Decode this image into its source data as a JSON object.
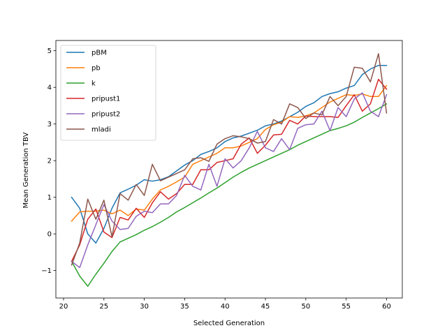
{
  "chart_data": {
    "type": "line",
    "xlabel": "Selected Generation",
    "ylabel": "Mean Generation TBV",
    "xlim": [
      19.05,
      61.95
    ],
    "ylim": [
      -1.75,
      5.28
    ],
    "xticks": [
      20,
      25,
      30,
      35,
      40,
      45,
      50,
      55,
      60
    ],
    "yticks": [
      -1,
      0,
      1,
      2,
      3,
      4,
      5
    ],
    "grid": false,
    "legend_position": "top-left",
    "x": [
      21,
      22,
      23,
      24,
      25,
      26,
      27,
      28,
      29,
      30,
      31,
      32,
      33,
      34,
      35,
      36,
      37,
      38,
      39,
      40,
      41,
      42,
      43,
      44,
      45,
      46,
      47,
      48,
      49,
      50,
      51,
      52,
      53,
      54,
      55,
      56,
      57,
      58,
      59,
      60
    ],
    "series": [
      {
        "name": "pBM",
        "color": "#1f77b4",
        "values": [
          1.0,
          0.7,
          0.0,
          -0.25,
          0.15,
          0.7,
          1.12,
          1.22,
          1.33,
          1.48,
          1.44,
          1.48,
          1.56,
          1.72,
          1.88,
          2.0,
          2.17,
          2.25,
          2.35,
          2.52,
          2.62,
          2.67,
          2.75,
          2.83,
          2.95,
          3.0,
          3.08,
          3.2,
          3.32,
          3.48,
          3.58,
          3.75,
          3.83,
          3.88,
          3.98,
          4.05,
          4.35,
          4.5,
          4.6,
          4.6
        ]
      },
      {
        "name": "pb",
        "color": "#ff7f0e",
        "values": [
          0.35,
          0.6,
          0.62,
          0.62,
          0.65,
          0.55,
          0.65,
          0.5,
          0.68,
          0.65,
          0.95,
          1.2,
          1.3,
          1.42,
          1.55,
          1.9,
          2.0,
          2.1,
          2.2,
          2.35,
          2.35,
          2.4,
          2.5,
          2.6,
          2.85,
          2.98,
          3.05,
          3.2,
          3.18,
          3.22,
          3.3,
          3.45,
          3.6,
          3.7,
          3.8,
          3.78,
          3.82,
          3.75,
          3.75,
          4.05
        ]
      },
      {
        "name": "k",
        "color": "#2ca02c",
        "values": [
          -0.75,
          -1.15,
          -1.43,
          -1.1,
          -0.8,
          -0.48,
          -0.22,
          -0.12,
          -0.02,
          0.1,
          0.2,
          0.32,
          0.45,
          0.6,
          0.72,
          0.85,
          0.98,
          1.12,
          1.25,
          1.4,
          1.55,
          1.68,
          1.8,
          1.9,
          2.0,
          2.1,
          2.2,
          2.3,
          2.42,
          2.52,
          2.62,
          2.72,
          2.82,
          2.88,
          2.95,
          3.05,
          3.18,
          3.3,
          3.42,
          3.55
        ]
      },
      {
        "name": "pripust1",
        "color": "#d62728",
        "values": [
          -0.75,
          -0.3,
          0.4,
          0.68,
          0.05,
          -0.1,
          0.45,
          0.38,
          0.7,
          0.45,
          0.85,
          1.15,
          0.95,
          1.1,
          1.35,
          1.35,
          1.75,
          1.75,
          1.95,
          2.0,
          2.05,
          2.45,
          2.62,
          2.2,
          2.42,
          2.7,
          2.72,
          3.1,
          3.0,
          3.22,
          3.2,
          3.2,
          3.2,
          3.18,
          3.5,
          3.8,
          3.35,
          3.55,
          4.22,
          3.95
        ]
      },
      {
        "name": "pripust2",
        "color": "#9467bd",
        "values": [
          -0.75,
          -0.92,
          -0.3,
          0.25,
          0.8,
          0.35,
          0.12,
          0.15,
          0.48,
          0.62,
          0.58,
          0.82,
          0.82,
          1.05,
          1.6,
          1.3,
          1.2,
          1.9,
          1.3,
          2.05,
          1.8,
          2.0,
          2.35,
          2.8,
          2.35,
          2.25,
          2.6,
          2.3,
          2.88,
          2.98,
          3.0,
          3.35,
          2.82,
          3.45,
          3.2,
          3.68,
          3.85,
          3.35,
          3.2,
          3.8
        ]
      },
      {
        "name": "mladi",
        "color": "#8c564b",
        "values": [
          -0.85,
          -0.25,
          0.95,
          0.4,
          0.92,
          -0.08,
          1.1,
          0.92,
          1.35,
          1.05,
          1.9,
          1.45,
          1.55,
          1.65,
          1.75,
          2.05,
          2.08,
          1.98,
          2.45,
          2.6,
          2.68,
          2.65,
          2.6,
          2.48,
          2.52,
          3.12,
          3.0,
          3.55,
          3.45,
          3.15,
          3.3,
          3.25,
          3.75,
          3.5,
          3.75,
          4.55,
          4.52,
          4.15,
          4.92,
          3.3
        ]
      }
    ]
  }
}
